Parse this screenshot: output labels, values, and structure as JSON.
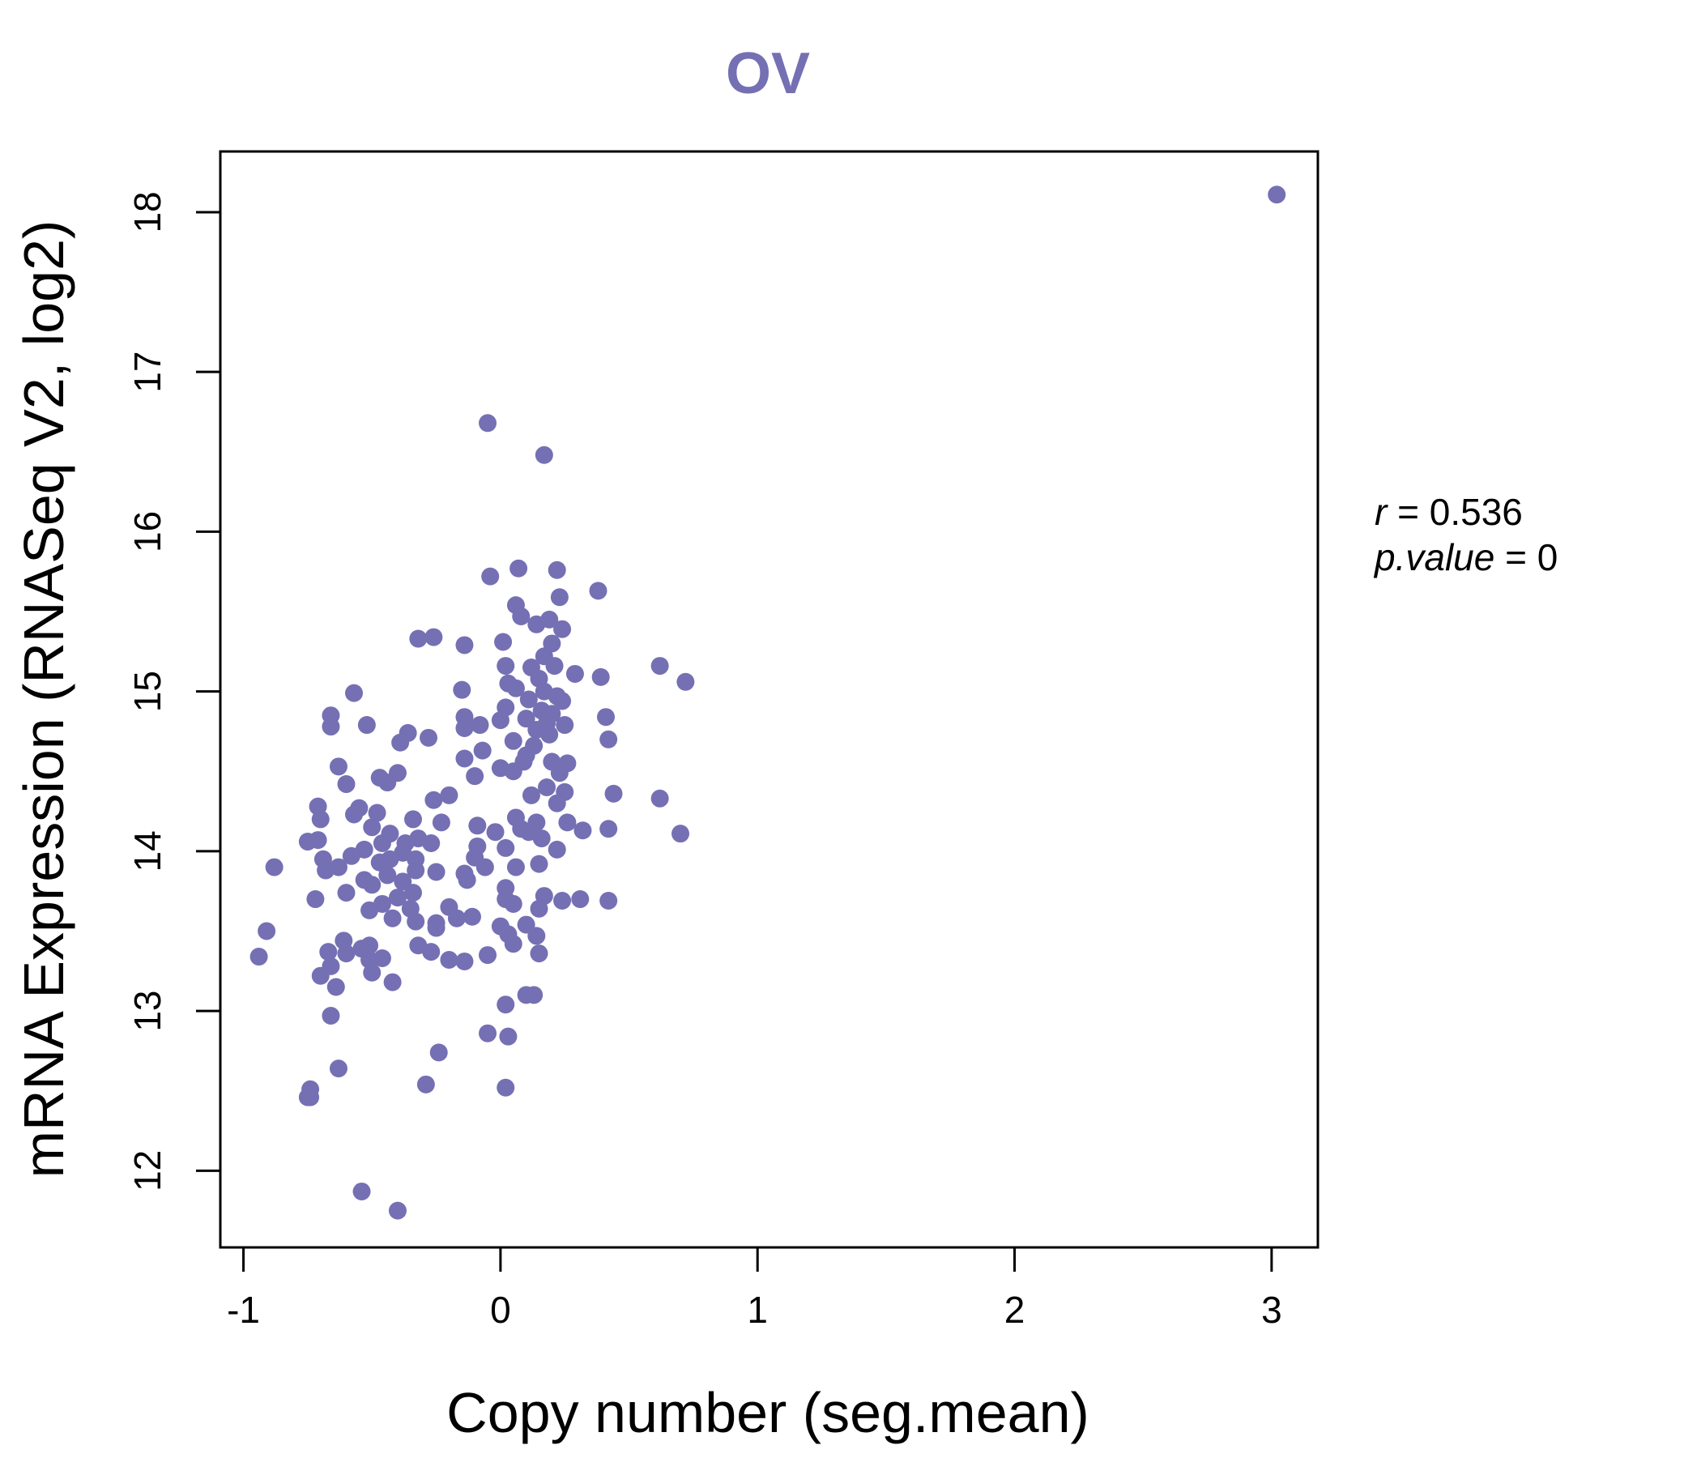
{
  "colors": {
    "accent": "#7570b3",
    "axis": "#000000",
    "background": "#ffffff"
  },
  "chart_data": {
    "type": "scatter",
    "title": "OV",
    "xlabel": "Copy number (seg.mean)",
    "ylabel": "mRNA Expression (RNASeq V2, log2)",
    "xlim": [
      -1.09,
      3.18
    ],
    "ylim": [
      11.52,
      18.38
    ],
    "xticks": [
      -1,
      0,
      1,
      2,
      3
    ],
    "xtick_labels": [
      "-1",
      "0",
      "1",
      "2",
      "3"
    ],
    "yticks": [
      12,
      13,
      14,
      15,
      16,
      17,
      18
    ],
    "ytick_labels": [
      "12",
      "13",
      "14",
      "15",
      "16",
      "17",
      "18"
    ],
    "stats": {
      "r_label": "r",
      "r_value": "0.536",
      "p_label": "p.value",
      "p_value": "0"
    },
    "points": [
      [
        3.02,
        18.11
      ],
      [
        -0.05,
        16.68
      ],
      [
        0.17,
        16.48
      ],
      [
        0.07,
        15.77
      ],
      [
        0.22,
        15.76
      ],
      [
        -0.04,
        15.72
      ],
      [
        0.38,
        15.63
      ],
      [
        0.23,
        15.59
      ],
      [
        0.06,
        15.54
      ],
      [
        0.08,
        15.47
      ],
      [
        0.19,
        15.45
      ],
      [
        0.24,
        15.39
      ],
      [
        0.14,
        15.42
      ],
      [
        -0.32,
        15.33
      ],
      [
        -0.26,
        15.34
      ],
      [
        -0.14,
        15.29
      ],
      [
        0.01,
        15.31
      ],
      [
        0.2,
        15.3
      ],
      [
        0.17,
        15.22
      ],
      [
        0.02,
        15.16
      ],
      [
        0.12,
        15.15
      ],
      [
        0.21,
        15.16
      ],
      [
        0.62,
        15.16
      ],
      [
        0.29,
        15.11
      ],
      [
        0.39,
        15.09
      ],
      [
        0.72,
        15.06
      ],
      [
        0.15,
        15.08
      ],
      [
        0.03,
        15.05
      ],
      [
        0.06,
        15.02
      ],
      [
        -0.15,
        15.01
      ],
      [
        -0.57,
        14.99
      ],
      [
        0.17,
        15.0
      ],
      [
        0.22,
        14.97
      ],
      [
        0.11,
        14.95
      ],
      [
        0.24,
        14.94
      ],
      [
        0.02,
        14.9
      ],
      [
        0.16,
        14.88
      ],
      [
        0.2,
        14.86
      ],
      [
        -0.66,
        14.85
      ],
      [
        0.41,
        14.84
      ],
      [
        -0.14,
        14.84
      ],
      [
        0.0,
        14.82
      ],
      [
        0.1,
        14.83
      ],
      [
        0.18,
        14.8
      ],
      [
        -0.52,
        14.79
      ],
      [
        -0.66,
        14.78
      ],
      [
        -0.08,
        14.79
      ],
      [
        0.25,
        14.79
      ],
      [
        -0.14,
        14.77
      ],
      [
        -0.36,
        14.74
      ],
      [
        0.14,
        14.76
      ],
      [
        0.19,
        14.73
      ],
      [
        -0.28,
        14.71
      ],
      [
        -0.39,
        14.68
      ],
      [
        0.42,
        14.7
      ],
      [
        0.05,
        14.69
      ],
      [
        0.13,
        14.66
      ],
      [
        -0.07,
        14.63
      ],
      [
        0.1,
        14.6
      ],
      [
        -0.14,
        14.58
      ],
      [
        0.2,
        14.56
      ],
      [
        0.26,
        14.55
      ],
      [
        0.09,
        14.56
      ],
      [
        0.0,
        14.52
      ],
      [
        -0.63,
        14.53
      ],
      [
        0.05,
        14.5
      ],
      [
        0.23,
        14.49
      ],
      [
        -0.4,
        14.49
      ],
      [
        -0.47,
        14.46
      ],
      [
        -0.1,
        14.47
      ],
      [
        -0.44,
        14.43
      ],
      [
        -0.6,
        14.42
      ],
      [
        0.18,
        14.4
      ],
      [
        0.44,
        14.36
      ],
      [
        -0.2,
        14.35
      ],
      [
        0.12,
        14.35
      ],
      [
        0.25,
        14.37
      ],
      [
        0.62,
        14.33
      ],
      [
        -0.26,
        14.32
      ],
      [
        -0.71,
        14.28
      ],
      [
        0.22,
        14.3
      ],
      [
        -0.55,
        14.27
      ],
      [
        -0.57,
        14.23
      ],
      [
        -0.48,
        14.24
      ],
      [
        -0.7,
        14.2
      ],
      [
        -0.34,
        14.2
      ],
      [
        0.06,
        14.21
      ],
      [
        -0.23,
        14.18
      ],
      [
        0.26,
        14.18
      ],
      [
        0.14,
        14.18
      ],
      [
        -0.09,
        14.16
      ],
      [
        -0.5,
        14.15
      ],
      [
        0.08,
        14.14
      ],
      [
        0.42,
        14.14
      ],
      [
        0.32,
        14.13
      ],
      [
        0.11,
        14.12
      ],
      [
        -0.02,
        14.12
      ],
      [
        0.7,
        14.11
      ],
      [
        -0.43,
        14.11
      ],
      [
        0.16,
        14.08
      ],
      [
        -0.32,
        14.08
      ],
      [
        -0.75,
        14.06
      ],
      [
        -0.71,
        14.07
      ],
      [
        -0.46,
        14.05
      ],
      [
        -0.27,
        14.05
      ],
      [
        -0.37,
        14.05
      ],
      [
        0.02,
        14.02
      ],
      [
        0.22,
        14.01
      ],
      [
        -0.53,
        14.01
      ],
      [
        -0.09,
        14.03
      ],
      [
        -0.38,
        13.99
      ],
      [
        -0.58,
        13.97
      ],
      [
        -0.69,
        13.95
      ],
      [
        -0.43,
        13.95
      ],
      [
        -0.1,
        13.96
      ],
      [
        -0.33,
        13.95
      ],
      [
        -0.47,
        13.93
      ],
      [
        0.15,
        13.92
      ],
      [
        -0.88,
        13.9
      ],
      [
        -0.63,
        13.9
      ],
      [
        -0.68,
        13.88
      ],
      [
        -0.33,
        13.88
      ],
      [
        -0.06,
        13.9
      ],
      [
        0.06,
        13.9
      ],
      [
        -0.25,
        13.87
      ],
      [
        -0.14,
        13.86
      ],
      [
        -0.44,
        13.85
      ],
      [
        -0.53,
        13.82
      ],
      [
        -0.13,
        13.82
      ],
      [
        -0.38,
        13.81
      ],
      [
        -0.5,
        13.79
      ],
      [
        0.02,
        13.77
      ],
      [
        -0.6,
        13.74
      ],
      [
        -0.34,
        13.74
      ],
      [
        0.17,
        13.72
      ],
      [
        -0.4,
        13.71
      ],
      [
        -0.72,
        13.7
      ],
      [
        0.02,
        13.7
      ],
      [
        0.24,
        13.69
      ],
      [
        0.31,
        13.7
      ],
      [
        0.42,
        13.69
      ],
      [
        0.05,
        13.67
      ],
      [
        -0.46,
        13.67
      ],
      [
        -0.2,
        13.65
      ],
      [
        0.15,
        13.64
      ],
      [
        -0.35,
        13.64
      ],
      [
        -0.51,
        13.63
      ],
      [
        -0.17,
        13.58
      ],
      [
        -0.42,
        13.58
      ],
      [
        -0.11,
        13.59
      ],
      [
        -0.25,
        13.55
      ],
      [
        -0.33,
        13.56
      ],
      [
        0.0,
        13.53
      ],
      [
        0.1,
        13.54
      ],
      [
        -0.91,
        13.5
      ],
      [
        -0.25,
        13.52
      ],
      [
        0.03,
        13.48
      ],
      [
        0.14,
        13.47
      ],
      [
        -0.61,
        13.44
      ],
      [
        0.05,
        13.42
      ],
      [
        -0.32,
        13.41
      ],
      [
        -0.51,
        13.41
      ],
      [
        -0.27,
        13.37
      ],
      [
        -0.54,
        13.39
      ],
      [
        -0.6,
        13.36
      ],
      [
        0.15,
        13.36
      ],
      [
        -0.67,
        13.37
      ],
      [
        -0.05,
        13.35
      ],
      [
        -0.94,
        13.34
      ],
      [
        -0.46,
        13.33
      ],
      [
        -0.51,
        13.32
      ],
      [
        -0.14,
        13.31
      ],
      [
        -0.2,
        13.32
      ],
      [
        -0.66,
        13.28
      ],
      [
        -0.5,
        13.24
      ],
      [
        -0.7,
        13.22
      ],
      [
        -0.42,
        13.18
      ],
      [
        -0.64,
        13.15
      ],
      [
        0.1,
        13.1
      ],
      [
        0.13,
        13.1
      ],
      [
        0.02,
        13.04
      ],
      [
        -0.66,
        12.97
      ],
      [
        -0.05,
        12.86
      ],
      [
        0.03,
        12.84
      ],
      [
        -0.24,
        12.74
      ],
      [
        -0.63,
        12.64
      ],
      [
        -0.29,
        12.54
      ],
      [
        0.02,
        12.52
      ],
      [
        -0.74,
        12.51
      ],
      [
        -0.74,
        12.46
      ],
      [
        -0.75,
        12.46
      ],
      [
        -0.54,
        11.87
      ],
      [
        -0.4,
        11.75
      ]
    ]
  }
}
